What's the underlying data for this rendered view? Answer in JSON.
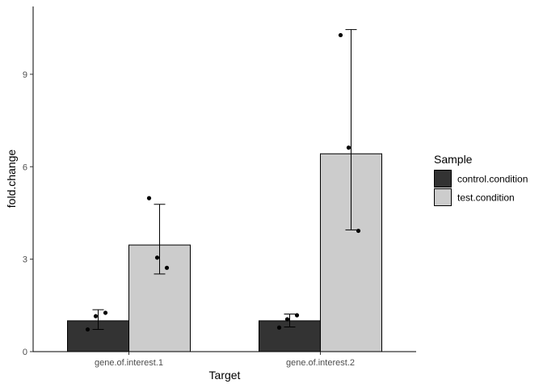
{
  "chart_data": {
    "type": "bar",
    "xlabel": "Target",
    "ylabel": "fold.change",
    "categories": [
      "gene.of.interest.1",
      "gene.of.interest.2"
    ],
    "ylim": [
      0,
      11.2
    ],
    "yticks": [
      0,
      3,
      6,
      9
    ],
    "grid": false,
    "legend": {
      "title": "Sample",
      "placement": "right",
      "entries": [
        "control.condition",
        "test.condition"
      ]
    },
    "series": [
      {
        "name": "control.condition",
        "color": "#333333",
        "values": [
          1.0,
          1.0
        ],
        "error": [
          [
            0.72,
            1.36
          ],
          [
            0.8,
            1.22
          ]
        ],
        "points": [
          [
            0.72,
            1.15,
            1.26
          ],
          [
            0.78,
            1.05,
            1.18
          ]
        ]
      },
      {
        "name": "test.condition",
        "color": "#cccccc",
        "values": [
          3.46,
          6.42
        ],
        "error": [
          [
            2.52,
            4.78
          ],
          [
            3.95,
            10.45
          ]
        ],
        "points": [
          [
            4.98,
            3.05,
            2.72
          ],
          [
            10.27,
            6.62,
            3.92
          ]
        ]
      }
    ]
  }
}
